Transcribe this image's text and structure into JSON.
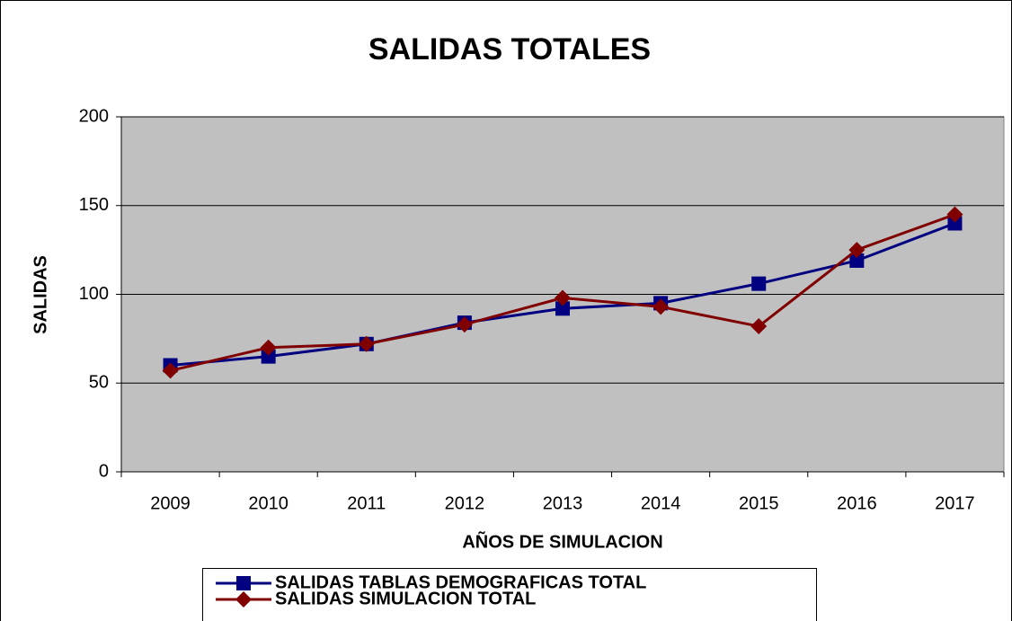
{
  "chart_data": {
    "type": "line",
    "title": "SALIDAS TOTALES",
    "xlabel": "AÑOS DE SIMULACION",
    "ylabel": "SALIDAS",
    "categories": [
      "2009",
      "2010",
      "2011",
      "2012",
      "2013",
      "2014",
      "2015",
      "2016",
      "2017"
    ],
    "series": [
      {
        "name": "SALIDAS TABLAS DEMOGRAFICAS TOTAL",
        "color": "#000080",
        "marker": "square",
        "values": [
          60,
          65,
          72,
          84,
          92,
          95,
          106,
          119,
          140
        ]
      },
      {
        "name": "SALIDAS SIMULACION TOTAL",
        "color": "#800000",
        "marker": "diamond",
        "values": [
          57,
          70,
          72,
          83,
          98,
          93,
          82,
          125,
          145
        ]
      }
    ],
    "ylim": [
      0,
      200
    ],
    "yticks": [
      0,
      50,
      100,
      150,
      200
    ],
    "grid": true,
    "legend": "bottom"
  }
}
